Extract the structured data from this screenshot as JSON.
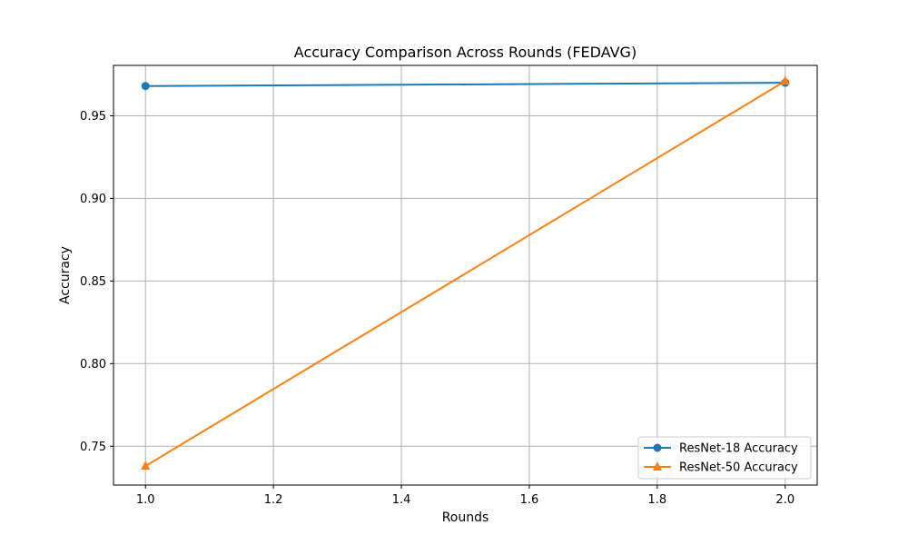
{
  "chart_data": {
    "type": "line",
    "title": "Accuracy Comparison Across Rounds (FEDAVG)",
    "xlabel": "Rounds",
    "ylabel": "Accuracy",
    "xlim": [
      0.95,
      2.05
    ],
    "ylim": [
      0.7265,
      0.9805
    ],
    "xticks": [
      "1.0",
      "1.2",
      "1.4",
      "1.6",
      "1.8",
      "2.0"
    ],
    "yticks": [
      "0.75",
      "0.80",
      "0.85",
      "0.90",
      "0.95"
    ],
    "grid": true,
    "legend_position": "bottom-right",
    "x": [
      1.0,
      2.0
    ],
    "series": [
      {
        "name": "ResNet-18 Accuracy",
        "values": [
          0.968,
          0.97
        ],
        "color": "#1f77b4",
        "marker": "circle"
      },
      {
        "name": "ResNet-50 Accuracy",
        "values": [
          0.738,
          0.971
        ],
        "color": "#ff7f0e",
        "marker": "triangle"
      }
    ]
  }
}
